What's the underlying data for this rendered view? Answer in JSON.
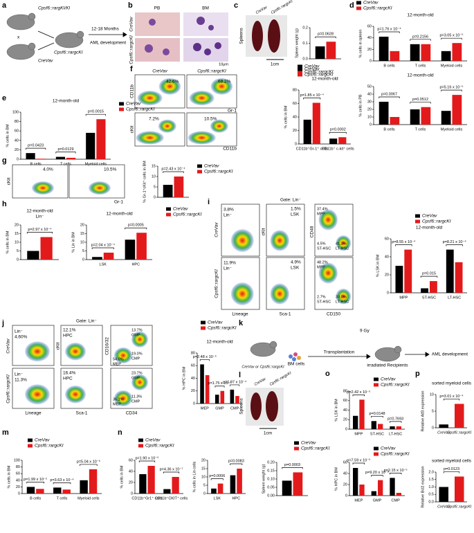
{
  "panel_letters": [
    "a",
    "b",
    "c",
    "d",
    "e",
    "f",
    "g",
    "h",
    "i",
    "j",
    "k",
    "l",
    "m",
    "n",
    "o",
    "p"
  ],
  "a": [
    "Cpsf6::rargKI/KI",
    "x",
    "CreVav",
    "Cpsf6::rargcKI",
    "12-18 Months",
    "AML development"
  ],
  "b": [
    "PB",
    "BM",
    "CreVav",
    "Cpsf6::rargcKI",
    "10μm"
  ],
  "c": [
    "CreVav",
    "Cpsf6::rargcKI",
    "Spleens",
    "1cm"
  ],
  "f": [
    "CreVav",
    "Cpsf6::rargcKI",
    "CD11b",
    "Gr-1",
    "cKit",
    "CD11b",
    "42.6%",
    "68.2%",
    "7.2%",
    "10.5%"
  ],
  "g": [
    "cKit",
    "Gr-1",
    "4.0%",
    "10.5%"
  ],
  "i": [
    "Gate: Lin⁻",
    "CreVav",
    "Cpsf6::rargcKI",
    "3.8%",
    "Lin⁻",
    "11.9%",
    "Lin⁻",
    "1.5%",
    "LSK",
    "4.9%",
    "LSK",
    "37.4%",
    "MPP",
    "4.5%",
    "ST-HSC",
    "41.3%",
    "LT-HSC",
    "48.2%",
    "MPP",
    "2.7%",
    "ST-HSC",
    "33.0%",
    "LT-HSC",
    "cKit",
    "Lineage",
    "Sca-1",
    "CD48",
    "CD150"
  ],
  "j": [
    "Gate: Lin⁻",
    "CreVav",
    "Cpsf6::rargcKI",
    "Lin⁻",
    "4.60%",
    "Lin⁻",
    "11.3%",
    "12.1%",
    "HPC",
    "16.4%",
    "HPC",
    "54.0%",
    "MEP",
    "36.1%",
    "MEP",
    "13.7%",
    "GMP",
    "19.0%",
    "CMP",
    "23.7%",
    "GMP",
    "11.3%",
    "CMP",
    "cKit",
    "Lineage",
    "Sca-1",
    "CD16/32",
    "CD34"
  ],
  "k": [
    "CreVav or Cpsf6::rargcKI",
    "BM cells",
    "Transplantation",
    "9 Gy",
    "irradiated Recipients",
    "AML development"
  ],
  "l": [
    "CreVav",
    "Cpsf6::rargcKI",
    "Spleens",
    "1cm"
  ],
  "chart_data": [
    {
      "type": "bar",
      "ylabel": "Spleen weight (g)",
      "categories": [
        null
      ],
      "series": [
        {
          "name": "CreVav",
          "color": "#000000",
          "values": [
            0.08
          ]
        },
        {
          "name": "Cpsf6::rargcKI",
          "color": "#e31a1c",
          "values": [
            0.11
          ]
        }
      ],
      "ylim": [
        0,
        0.2
      ],
      "yticks": [
        {
          "value": 0,
          "label": "0.0"
        },
        0.1,
        0.2
      ],
      "pvalues": [
        "p=0.0628"
      ]
    },
    {
      "type": "bar",
      "ylabel": "% cells in spleen",
      "title": "12-month-old",
      "categories": [
        "B cells",
        "T cells",
        "Myeloid cells"
      ],
      "series": [
        {
          "name": "CreVav",
          "color": "#000000",
          "values": [
            42,
            29,
            17
          ]
        },
        {
          "name": "Cpsf6::rargcKI",
          "color": "#e31a1c",
          "values": [
            17,
            29,
            31
          ]
        }
      ],
      "ylim": [
        0,
        60
      ],
      "yticks": [
        0,
        20,
        40,
        60
      ],
      "pvalues": [
        "p=1.76 x 10⁻⁴",
        "p=0.2156",
        "p=3.05 x 10⁻⁵"
      ]
    },
    {
      "type": "bar",
      "ylabel": "% cells in PB",
      "title": "12-month-old",
      "categories": [
        "B cells",
        "T cells",
        "Myeloid cells"
      ],
      "series": [
        {
          "color": "#000000",
          "values": [
            30,
            20,
            18
          ]
        },
        {
          "color": "#e31a1c",
          "values": [
            10,
            23,
            39
          ]
        }
      ],
      "ylim": [
        0,
        50
      ],
      "yticks": [
        0,
        10,
        20,
        30,
        40,
        50
      ],
      "pvalues": [
        "p=0.0067",
        "p=0.0512",
        "p=5.16 x 10⁻⁵"
      ]
    },
    {
      "type": "bar",
      "ylabel": "% cells in BM",
      "title": "12-month-old",
      "categories": [
        "B cells",
        "T cells",
        "Myeloid cells"
      ],
      "series": [
        {
          "name": "CreVav",
          "color": "#000000",
          "values": [
            13,
            5,
            56
          ]
        },
        {
          "name": "Cpsf6::rargcKI",
          "color": "#e31a1c",
          "values": [
            1,
            3,
            85
          ]
        }
      ],
      "ylim": [
        0,
        100
      ],
      "yticks": [
        0,
        20,
        40,
        60,
        80,
        100
      ],
      "pvalues": [
        "p=0.0423",
        "p=0.0129",
        "p=0.0015"
      ]
    },
    {
      "type": "bar",
      "ylabel": "% cells in BM",
      "title": "12-month-old",
      "categories": [
        "CD11b⁺Gr-1⁺ cells",
        "CD11b⁺ c-kit⁺ cells"
      ],
      "series": [
        {
          "name": "CreVav",
          "color": "#000000",
          "values": [
            36,
            8
          ]
        },
        {
          "name": "Cpsf6::rargcKI",
          "color": "#e31a1c",
          "values": [
            61,
            10
          ]
        }
      ],
      "ylim": [
        0,
        80
      ],
      "yticks": [
        0,
        20,
        40,
        60,
        80
      ],
      "pvalues": [
        "p=1.85 x 10⁻⁴",
        "p=0.0002"
      ]
    },
    {
      "type": "bar",
      "ylabel": "% Gr-1⁺cKit⁺ cells in BM",
      "categories": [
        null
      ],
      "series": [
        {
          "name": "CreVav",
          "color": "#000000",
          "values": [
            6
          ]
        },
        {
          "name": "Cpsf6::rargcKI",
          "color": "#e31a1c",
          "values": [
            10
          ]
        }
      ],
      "ylim": [
        0,
        15
      ],
      "yticks": [
        0,
        5,
        10,
        15
      ],
      "pvalues": [
        "p=2.43 x 10⁻⁴"
      ]
    },
    {
      "type": "bar",
      "ylabel": "% cells in BM",
      "title": "12-month-old",
      "subtitle": "Lin⁻",
      "categories": [
        null
      ],
      "series": [
        {
          "color": "#000000",
          "values": [
            5
          ]
        },
        {
          "color": "#e31a1c",
          "values": [
            13
          ]
        }
      ],
      "ylim": [
        0,
        20
      ],
      "yticks": [
        0,
        5,
        10,
        15,
        20
      ],
      "pvalues": [
        "p=2.97 x 10⁻⁴"
      ]
    },
    {
      "type": "bar",
      "ylabel": "% Lin in BM",
      "title": "12-month-old",
      "categories": [
        "LSK",
        "HPC"
      ],
      "series": [
        {
          "name": "CreVav",
          "color": "#000000",
          "values": [
            1.5,
            11.5
          ]
        },
        {
          "name": "Cpsf6::rargcKI",
          "color": "#e31a1c",
          "values": [
            4,
            15.5
          ]
        }
      ],
      "ylim": [
        0,
        20
      ],
      "yticks": [
        0,
        5,
        10,
        15,
        20
      ],
      "pvalues": [
        "p=2.04 x 10⁻⁴",
        "p=0.0005"
      ]
    },
    {
      "type": "bar",
      "ylabel": "% LSK in BM",
      "title": "12-month-old",
      "categories": [
        "MPP",
        "ST-HSC",
        "LT-HSC"
      ],
      "series": [
        {
          "name": "CreVav",
          "color": "#000000",
          "values": [
            30,
            5,
            48
          ]
        },
        {
          "name": "Cpsf6::rargcKI",
          "color": "#e31a1c",
          "values": [
            48,
            13,
            34
          ]
        }
      ],
      "ylim": [
        0,
        60
      ],
      "yticks": [
        0,
        20,
        40,
        60
      ],
      "pvalues": [
        "p=8.55 x 10⁻⁴",
        "p=0.015",
        "p=8.21 x 10⁻⁴"
      ]
    },
    {
      "type": "bar",
      "ylabel": "% HPC in BM",
      "title": "12-month-old",
      "categories": [
        "MEP",
        "GMP",
        "CMP"
      ],
      "series": [
        {
          "name": "CreVav",
          "color": "#000000",
          "values": [
            62,
            14,
            22
          ]
        },
        {
          "name": "Cpsf6::rargcKI",
          "color": "#e31a1c",
          "values": [
            45,
            20,
            12
          ]
        }
      ],
      "ylim": [
        0,
        80
      ],
      "yticks": [
        0,
        20,
        40,
        60,
        80
      ],
      "pvalues": [
        "p=2.48 x 10⁻⁵",
        "p=1.75 x 10⁻⁴",
        "p=1.97 x 10⁻⁴"
      ]
    },
    {
      "type": "bar",
      "ylabel": "Spleen weight (g)",
      "categories": [
        null
      ],
      "series": [
        {
          "name": "CreVav",
          "color": "#000000",
          "values": [
            0.09
          ]
        },
        {
          "name": "Cpsf6::rargcKI",
          "color": "#e31a1c",
          "values": [
            0.14
          ]
        }
      ],
      "ylim": [
        0,
        0.2
      ],
      "yticks": [
        {
          "value": 0,
          "label": "0.00"
        },
        0.05,
        {
          "value": 0.1,
          "label": "0.10"
        },
        0.15,
        {
          "value": 0.2,
          "label": "0.20"
        }
      ],
      "pvalues": [
        "p=0.0003"
      ]
    },
    {
      "type": "bar",
      "ylabel": "% LSK in BM",
      "categories": [
        "MPP",
        "ST-HSC",
        "LT-HSC"
      ],
      "series": [
        {
          "name": "CreVav",
          "color": "#000000",
          "values": [
            28,
            17,
            6
          ]
        },
        {
          "name": "Cpsf6::rargcKI",
          "color": "#e31a1c",
          "values": [
            62,
            11,
            6
          ]
        }
      ],
      "ylim": [
        0,
        80
      ],
      "yticks": [
        0,
        20,
        40,
        60,
        80
      ],
      "pvalues": [
        "p=2.42 x 10⁻⁵",
        "p=0.0148",
        "p=0.7693"
      ]
    },
    {
      "type": "bar",
      "ylabel": "% HPC in BM",
      "categories": [
        "MEP",
        "GMP",
        "CMP"
      ],
      "series": [
        {
          "name": "CreVav",
          "color": "#000000",
          "values": [
            50,
            8,
            32
          ]
        },
        {
          "name": "Cpsf6::rargcKI",
          "color": "#e31a1c",
          "values": [
            20,
            28,
            5
          ]
        }
      ],
      "ylim": [
        0,
        60
      ],
      "yticks": [
        0,
        20,
        40,
        60
      ],
      "pvalues": [
        "p=7.59 x 10⁻⁵",
        "p=9.20 x 10⁻⁸",
        "p=2.15 x 10⁻⁵"
      ]
    },
    {
      "type": "bar",
      "ylabel": "Relative Atf3 expression",
      "title": "sorted myeloid cells",
      "categories": [
        "CreVav",
        "Cpsf6::rargcKI"
      ],
      "values": [
        1,
        7.2
      ],
      "colors": [
        "#000000",
        "#e31a1c"
      ],
      "ylim": [
        0,
        10
      ],
      "yticks": [
        0,
        5,
        10
      ],
      "pvalues": [
        "p=3.01 x 10⁻⁴"
      ]
    },
    {
      "type": "bar",
      "ylabel": "Relative Bcl2 expression",
      "title": "sorted myeloid cells",
      "categories": [
        "CreVav",
        "Cpsf6::rargcKI"
      ],
      "values": [
        1,
        1.7
      ],
      "colors": [
        "#000000",
        "#e31a1c"
      ],
      "ylim": [
        0,
        2
      ],
      "yticks": [
        {
          "value": 0,
          "label": "0.0"
        },
        0.5,
        {
          "value": 1,
          "label": "1.0"
        },
        1.5,
        {
          "value": 2,
          "label": "2.0"
        }
      ],
      "pvalues": [
        "p=0.0123"
      ]
    },
    {
      "type": "bar",
      "ylabel": "% cells in BM",
      "categories": [
        "B cells",
        "T cells",
        "Myeloid cells"
      ],
      "series": [
        {
          "name": "CreVav",
          "color": "#000000",
          "values": [
            20,
            18,
            40
          ]
        },
        {
          "name": "Cpsf6::rargcKI",
          "color": "#e31a1c",
          "values": [
            14,
            12,
            73
          ]
        }
      ],
      "ylim": [
        0,
        100
      ],
      "yticks": [
        0,
        20,
        40,
        60,
        80,
        100
      ],
      "pvalues": [
        "p=1.99 x 10⁻⁵",
        "p=3.63 x 10⁻⁴",
        "p=5.04 x 10⁻⁶"
      ]
    },
    {
      "type": "bar",
      "ylabel": "% cells in BM",
      "categories": [
        "CD11b⁺Gr1⁺ cells",
        "CD11b⁺CKIT⁺ cells"
      ],
      "series": [
        {
          "name": "CreVav",
          "color": "#000000",
          "values": [
            35,
            8
          ]
        },
        {
          "name": "Cpsf6::rargcKI",
          "color": "#e31a1c",
          "values": [
            50,
            30
          ]
        }
      ],
      "ylim": [
        0,
        60
      ],
      "yticks": [
        0,
        20,
        40,
        60
      ],
      "pvalues": [
        "p=1.90 x 10⁻⁵",
        "p=4.36 x 10⁻⁷"
      ]
    },
    {
      "type": "bar",
      "ylabel": "% cells in Lin cells",
      "categories": [
        "LSK",
        "HPC"
      ],
      "series": [
        {
          "color": "#000000",
          "values": [
            3,
            11
          ]
        },
        {
          "color": "#e31a1c",
          "values": [
            6,
            15
          ]
        }
      ],
      "ylim": [
        0,
        20
      ],
      "yticks": [
        0,
        5,
        10,
        15,
        20
      ],
      "pvalues": [
        "p=0.0006",
        "p=0.0083"
      ]
    }
  ]
}
